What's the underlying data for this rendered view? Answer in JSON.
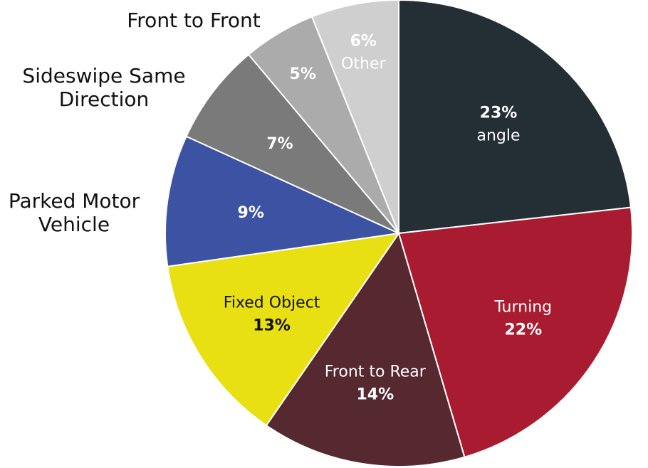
{
  "chart_data": {
    "type": "pie",
    "title": "",
    "slices": [
      {
        "label": "angle",
        "percent_label": "23%",
        "value": 23,
        "color": "#242e35",
        "text_color": "#ffffff",
        "label_first": false
      },
      {
        "label": "Turning",
        "percent_label": "22%",
        "value": 22,
        "color": "#a81b30",
        "text_color": "#ffffff",
        "label_first": true
      },
      {
        "label": "Front to Rear",
        "percent_label": "14%",
        "value": 14,
        "color": "#56282f",
        "text_color": "#ffffff",
        "label_first": true
      },
      {
        "label": "Fixed Object",
        "percent_label": "13%",
        "value": 13,
        "color": "#e8e012",
        "text_color": "#111111",
        "label_first": true
      },
      {
        "label": "Parked Motor Vehicle",
        "percent_label": "9%",
        "value": 9,
        "color": "#3c52a3",
        "text_color": "#ffffff",
        "outside": true,
        "outside_lines": [
          "Parked Motor",
          "Vehicle"
        ]
      },
      {
        "label": "Sideswipe Same Direction",
        "percent_label": "7%",
        "value": 7,
        "color": "#7a7a7a",
        "text_color": "#ffffff",
        "outside": true,
        "outside_lines": [
          "Sideswipe Same",
          "Direction"
        ]
      },
      {
        "label": "Front to Front",
        "percent_label": "5%",
        "value": 5,
        "color": "#ababab",
        "text_color": "#ffffff",
        "outside": true,
        "outside_lines": [
          "Front to Front"
        ]
      },
      {
        "label": "Other",
        "percent_label": "6%",
        "value": 6,
        "color": "#cfcfcf",
        "text_color": "#ffffff",
        "label_first": false
      }
    ]
  }
}
